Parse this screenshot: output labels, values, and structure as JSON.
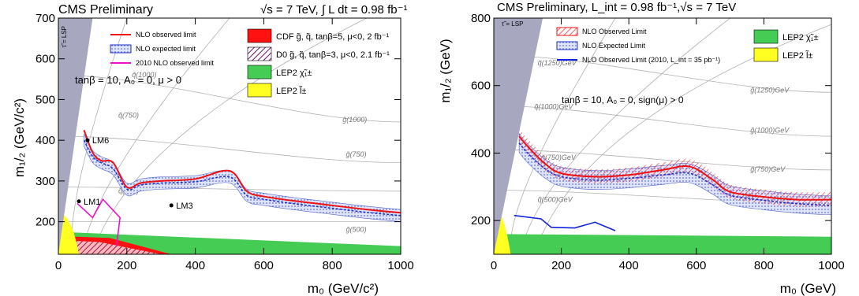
{
  "chart_data": [
    {
      "type": "line",
      "title": "CMS Preliminary",
      "subtitle": "√s = 7 TeV, ∫ L dt = 0.98 fb⁻¹",
      "xlabel": "m₀ (GeV/c²)",
      "ylabel": "m₁/₂ (GeV/c²)",
      "xlim": [
        0,
        1000
      ],
      "ylim": [
        120,
        700
      ],
      "xticks": [
        "0",
        "200",
        "400",
        "600",
        "800",
        "1000"
      ],
      "yticks": [
        "200",
        "300",
        "400",
        "500",
        "600",
        "700"
      ],
      "lsp_label": "τ̃ = LSP",
      "params_text": "tanβ = 10,  A₀ = 0,  μ > 0",
      "legend_left": [
        "NLO observed limit",
        "NLO expected limit",
        "2010 NLO observed limit"
      ],
      "legend_right": [
        "CDF  g̃, q̃, tanβ=5, μ<0, 2 fb⁻¹",
        "D0  g̃, q̃, tanβ=3, μ<0, 2.1 fb⁻¹",
        "LEP2  χ̃₁±",
        "LEP2  l̃±"
      ],
      "contours": [
        "q̃(1000)",
        "g̃(1000)",
        "q̃(750)",
        "g̃(750)",
        "q̃(500)",
        "g̃(500)"
      ],
      "points": [
        {
          "name": "LM6",
          "x": 85,
          "y": 400
        },
        {
          "name": "LM1",
          "x": 60,
          "y": 250
        },
        {
          "name": "LM3",
          "x": 330,
          "y": 240
        }
      ],
      "series": [
        {
          "name": "NLO observed limit",
          "x": [
            75,
            100,
            125,
            160,
            200,
            240,
            300,
            400,
            500,
            550,
            600,
            700,
            800,
            900,
            1000
          ],
          "y": [
            425,
            370,
            350,
            345,
            285,
            295,
            300,
            305,
            325,
            275,
            262,
            250,
            240,
            230,
            222
          ]
        },
        {
          "name": "NLO expected limit",
          "x": [
            75,
            100,
            125,
            160,
            200,
            240,
            300,
            400,
            500,
            550,
            600,
            700,
            800,
            900,
            1000
          ],
          "y": [
            400,
            360,
            345,
            330,
            280,
            290,
            295,
            298,
            310,
            265,
            255,
            243,
            233,
            223,
            215
          ]
        }
      ]
    },
    {
      "type": "line",
      "title": "CMS Preliminary, L_int = 0.98 fb⁻¹,√s = 7 TeV",
      "xlabel": "m₀ (GeV)",
      "ylabel": "m₁/₂ (GeV)",
      "xlim": [
        0,
        1000
      ],
      "ylim": [
        100,
        800
      ],
      "xticks": [
        "0",
        "200",
        "400",
        "600",
        "800",
        "1000"
      ],
      "yticks": [
        "200",
        "400",
        "600",
        "800"
      ],
      "lsp_label": "τ̃ = LSP",
      "params_text": "tanβ = 10, A₀ = 0, sign(μ) > 0",
      "legend_left": [
        "NLO Observed Limit",
        "NLO Expected Limit",
        "NLO Observed Limit (2010, L_int = 35 pb⁻¹)"
      ],
      "legend_right": [
        "LEP2  χ̃₁±",
        "LEP2  l̃±"
      ],
      "contours": [
        "q̃(1250)GeV",
        "g̃(1250)GeV",
        "q̃(1000)GeV",
        "g̃(1000)GeV",
        "q̃(750)GeV",
        "g̃(750)GeV",
        "q̃(500)GeV",
        "g̃(500)GeV"
      ],
      "series": [
        {
          "name": "NLO Observed Limit",
          "x": [
            75,
            100,
            150,
            200,
            300,
            400,
            500,
            580,
            650,
            700,
            800,
            900,
            1000
          ],
          "y": [
            450,
            420,
            370,
            340,
            330,
            335,
            350,
            360,
            320,
            285,
            270,
            262,
            262
          ]
        },
        {
          "name": "NLO Expected Limit",
          "x": [
            75,
            100,
            150,
            200,
            300,
            400,
            500,
            580,
            650,
            700,
            800,
            900,
            1000
          ],
          "y": [
            430,
            400,
            355,
            330,
            320,
            325,
            335,
            340,
            305,
            275,
            260,
            250,
            245
          ]
        },
        {
          "name": "NLO Observed Limit (2010, L_int = 35 pb⁻¹)",
          "x": [
            60,
            90,
            120,
            150,
            180,
            210,
            240,
            270,
            300,
            330,
            360
          ],
          "y": [
            215,
            210,
            205,
            180,
            178,
            170,
            180,
            185,
            195,
            180,
            170
          ]
        }
      ]
    }
  ],
  "colors": {
    "observed": "#ee1111",
    "expected": "#2233cc",
    "band": "#aab4ee",
    "lep_chargino": "#44cc55",
    "lep_slepton": "#ffff22",
    "lsp": "#a7a7bf",
    "cdf": "#ff1111",
    "d0": "#771177",
    "run2010": "#ee11cc",
    "run2010_right": "#1122dd"
  }
}
